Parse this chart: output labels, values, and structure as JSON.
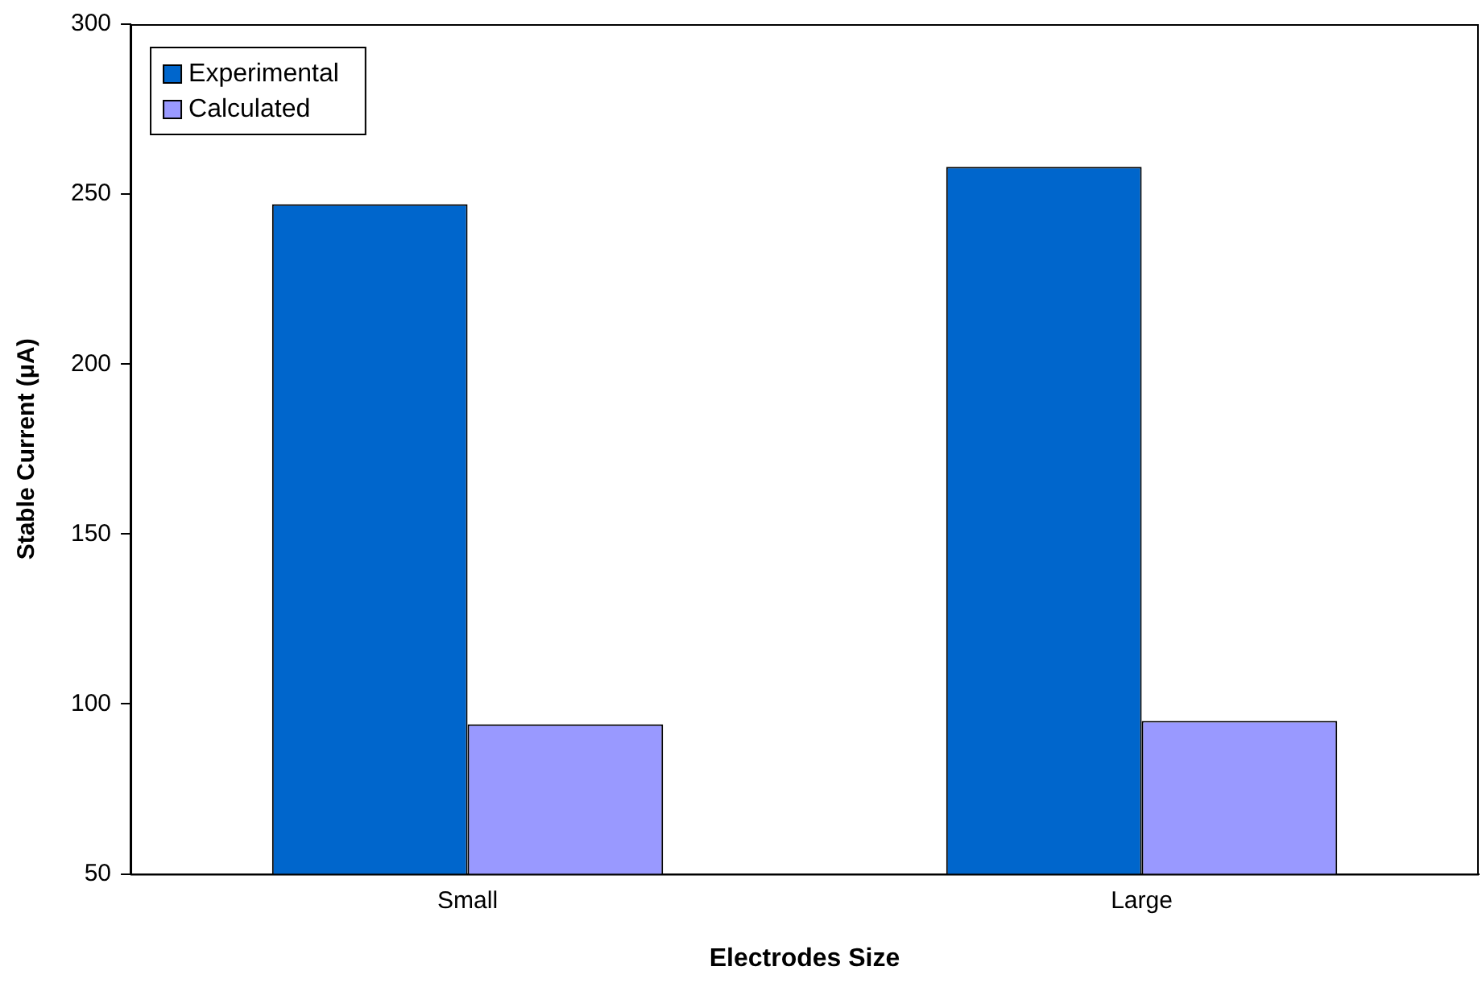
{
  "chart_data": {
    "type": "bar",
    "xlabel": "Electrodes Size",
    "ylabel": "Stable Current (μA)",
    "categories": [
      "Small",
      "Large"
    ],
    "series": [
      {
        "name": "Experimental",
        "color": "#0066cc",
        "values": [
          247,
          258
        ]
      },
      {
        "name": "Calculated",
        "color": "#9999ff",
        "values": [
          94,
          95
        ]
      }
    ],
    "ylim": [
      50,
      300
    ],
    "yticks": [
      50,
      100,
      150,
      200,
      250,
      300
    ],
    "grid": false,
    "legend": "top left"
  }
}
